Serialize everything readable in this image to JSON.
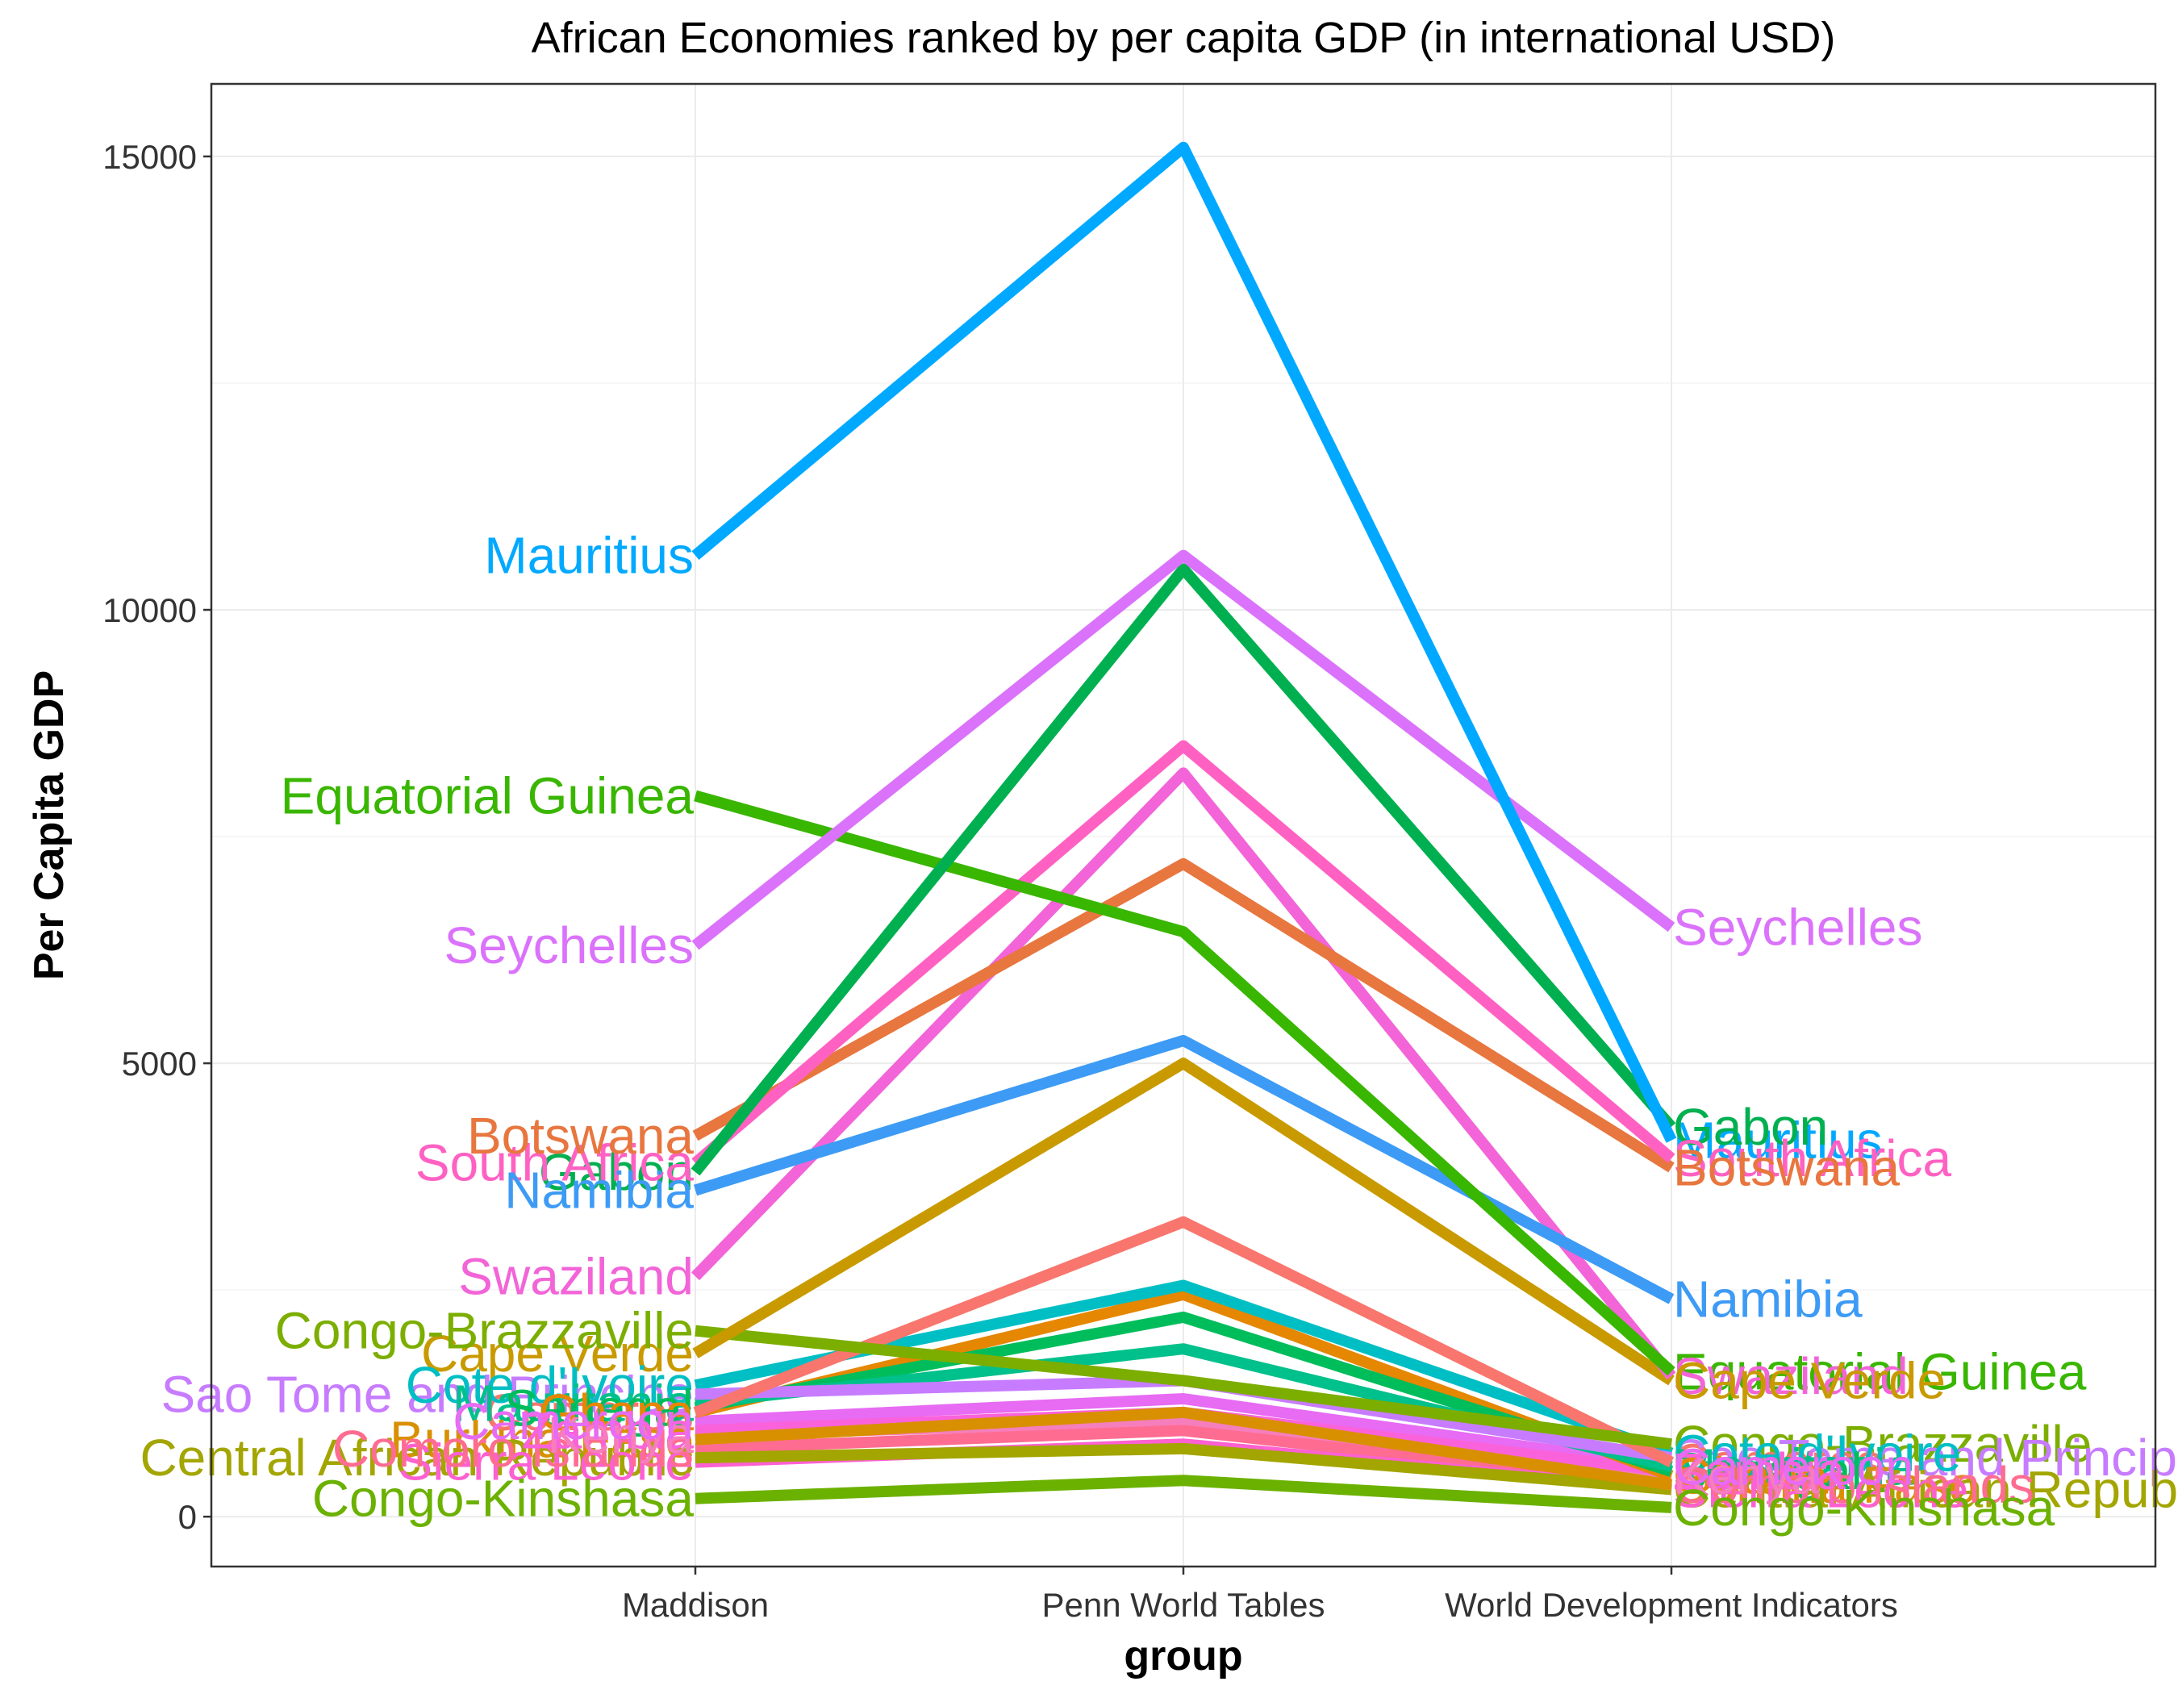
{
  "chart_data": {
    "type": "line",
    "title": "African Economies ranked by per capita GDP (in international USD)",
    "xlabel": "group",
    "ylabel": "Per Capita GDP",
    "categories": [
      "Maddison",
      "Penn World Tables",
      "World Development Indicators"
    ],
    "ylim": [
      -550,
      15800
    ],
    "y_ticks": [
      0,
      5000,
      10000,
      15000
    ],
    "grid": true,
    "legend": "none",
    "series": [
      {
        "name": "Mauritius",
        "color": "#00a9ff",
        "values": [
          10600,
          15100,
          4150
        ]
      },
      {
        "name": "Seychelles",
        "color": "#db72fb",
        "values": [
          6300,
          10600,
          6500
        ]
      },
      {
        "name": "Gabon",
        "color": "#00b050",
        "values": [
          3800,
          10450,
          4300
        ]
      },
      {
        "name": "Equatorial Guinea",
        "color": "#39b600",
        "values": [
          7950,
          6450,
          1600
        ]
      },
      {
        "name": "South Africa",
        "color": "#ff61c3",
        "values": [
          3900,
          8500,
          3950
        ]
      },
      {
        "name": "Botswana",
        "color": "#e8763f",
        "values": [
          4200,
          7200,
          3850
        ]
      },
      {
        "name": "Namibia",
        "color": "#3d9bf5",
        "values": [
          3600,
          5250,
          2400
        ]
      },
      {
        "name": "Swaziland",
        "color": "#f264d8",
        "values": [
          2650,
          8200,
          1550
        ]
      },
      {
        "name": "Cape Verde",
        "color": "#c99a00",
        "values": [
          1800,
          5000,
          1500
        ]
      },
      {
        "name": "Congo-Brazzaville",
        "color": "#7cae00",
        "values": [
          2050,
          1500,
          800
        ]
      },
      {
        "name": "Comoros",
        "color": "#f8766d",
        "values": [
          1150,
          3250,
          600
        ]
      },
      {
        "name": "Sao Tome and Principe",
        "color": "#c77cff",
        "values": [
          1350,
          1500,
          650
        ]
      },
      {
        "name": "Cote d'Ivoire",
        "color": "#00bfc4",
        "values": [
          1450,
          2550,
          700
        ]
      },
      {
        "name": "Mauritania",
        "color": "#00c08b",
        "values": [
          1250,
          1850,
          550
        ]
      },
      {
        "name": "Senegal",
        "color": "#00bd5c",
        "values": [
          1200,
          2200,
          500
        ]
      },
      {
        "name": "Ghana",
        "color": "#e58700",
        "values": [
          1150,
          2450,
          450
        ]
      },
      {
        "name": "Burkina Faso",
        "color": "#d89000",
        "values": [
          850,
          1150,
          350
        ]
      },
      {
        "name": "Central African Republic",
        "color": "#a3a500",
        "values": [
          650,
          750,
          300
        ]
      },
      {
        "name": "Sierra Leone",
        "color": "#fd61d1",
        "values": [
          600,
          800,
          300
        ]
      },
      {
        "name": "Comoro Islands",
        "color": "#ff6c91",
        "values": [
          750,
          950,
          350
        ]
      },
      {
        "name": "Zambia",
        "color": "#fa62db",
        "values": [
          950,
          1150,
          500
        ]
      },
      {
        "name": "Kenya",
        "color": "#f67ebc",
        "values": [
          900,
          1050,
          450
        ]
      },
      {
        "name": "Cameroon",
        "color": "#e76bf3",
        "values": [
          1050,
          1300,
          550
        ]
      },
      {
        "name": "Congo-Kinshasa",
        "color": "#6bb100",
        "values": [
          200,
          400,
          100
        ]
      }
    ]
  }
}
